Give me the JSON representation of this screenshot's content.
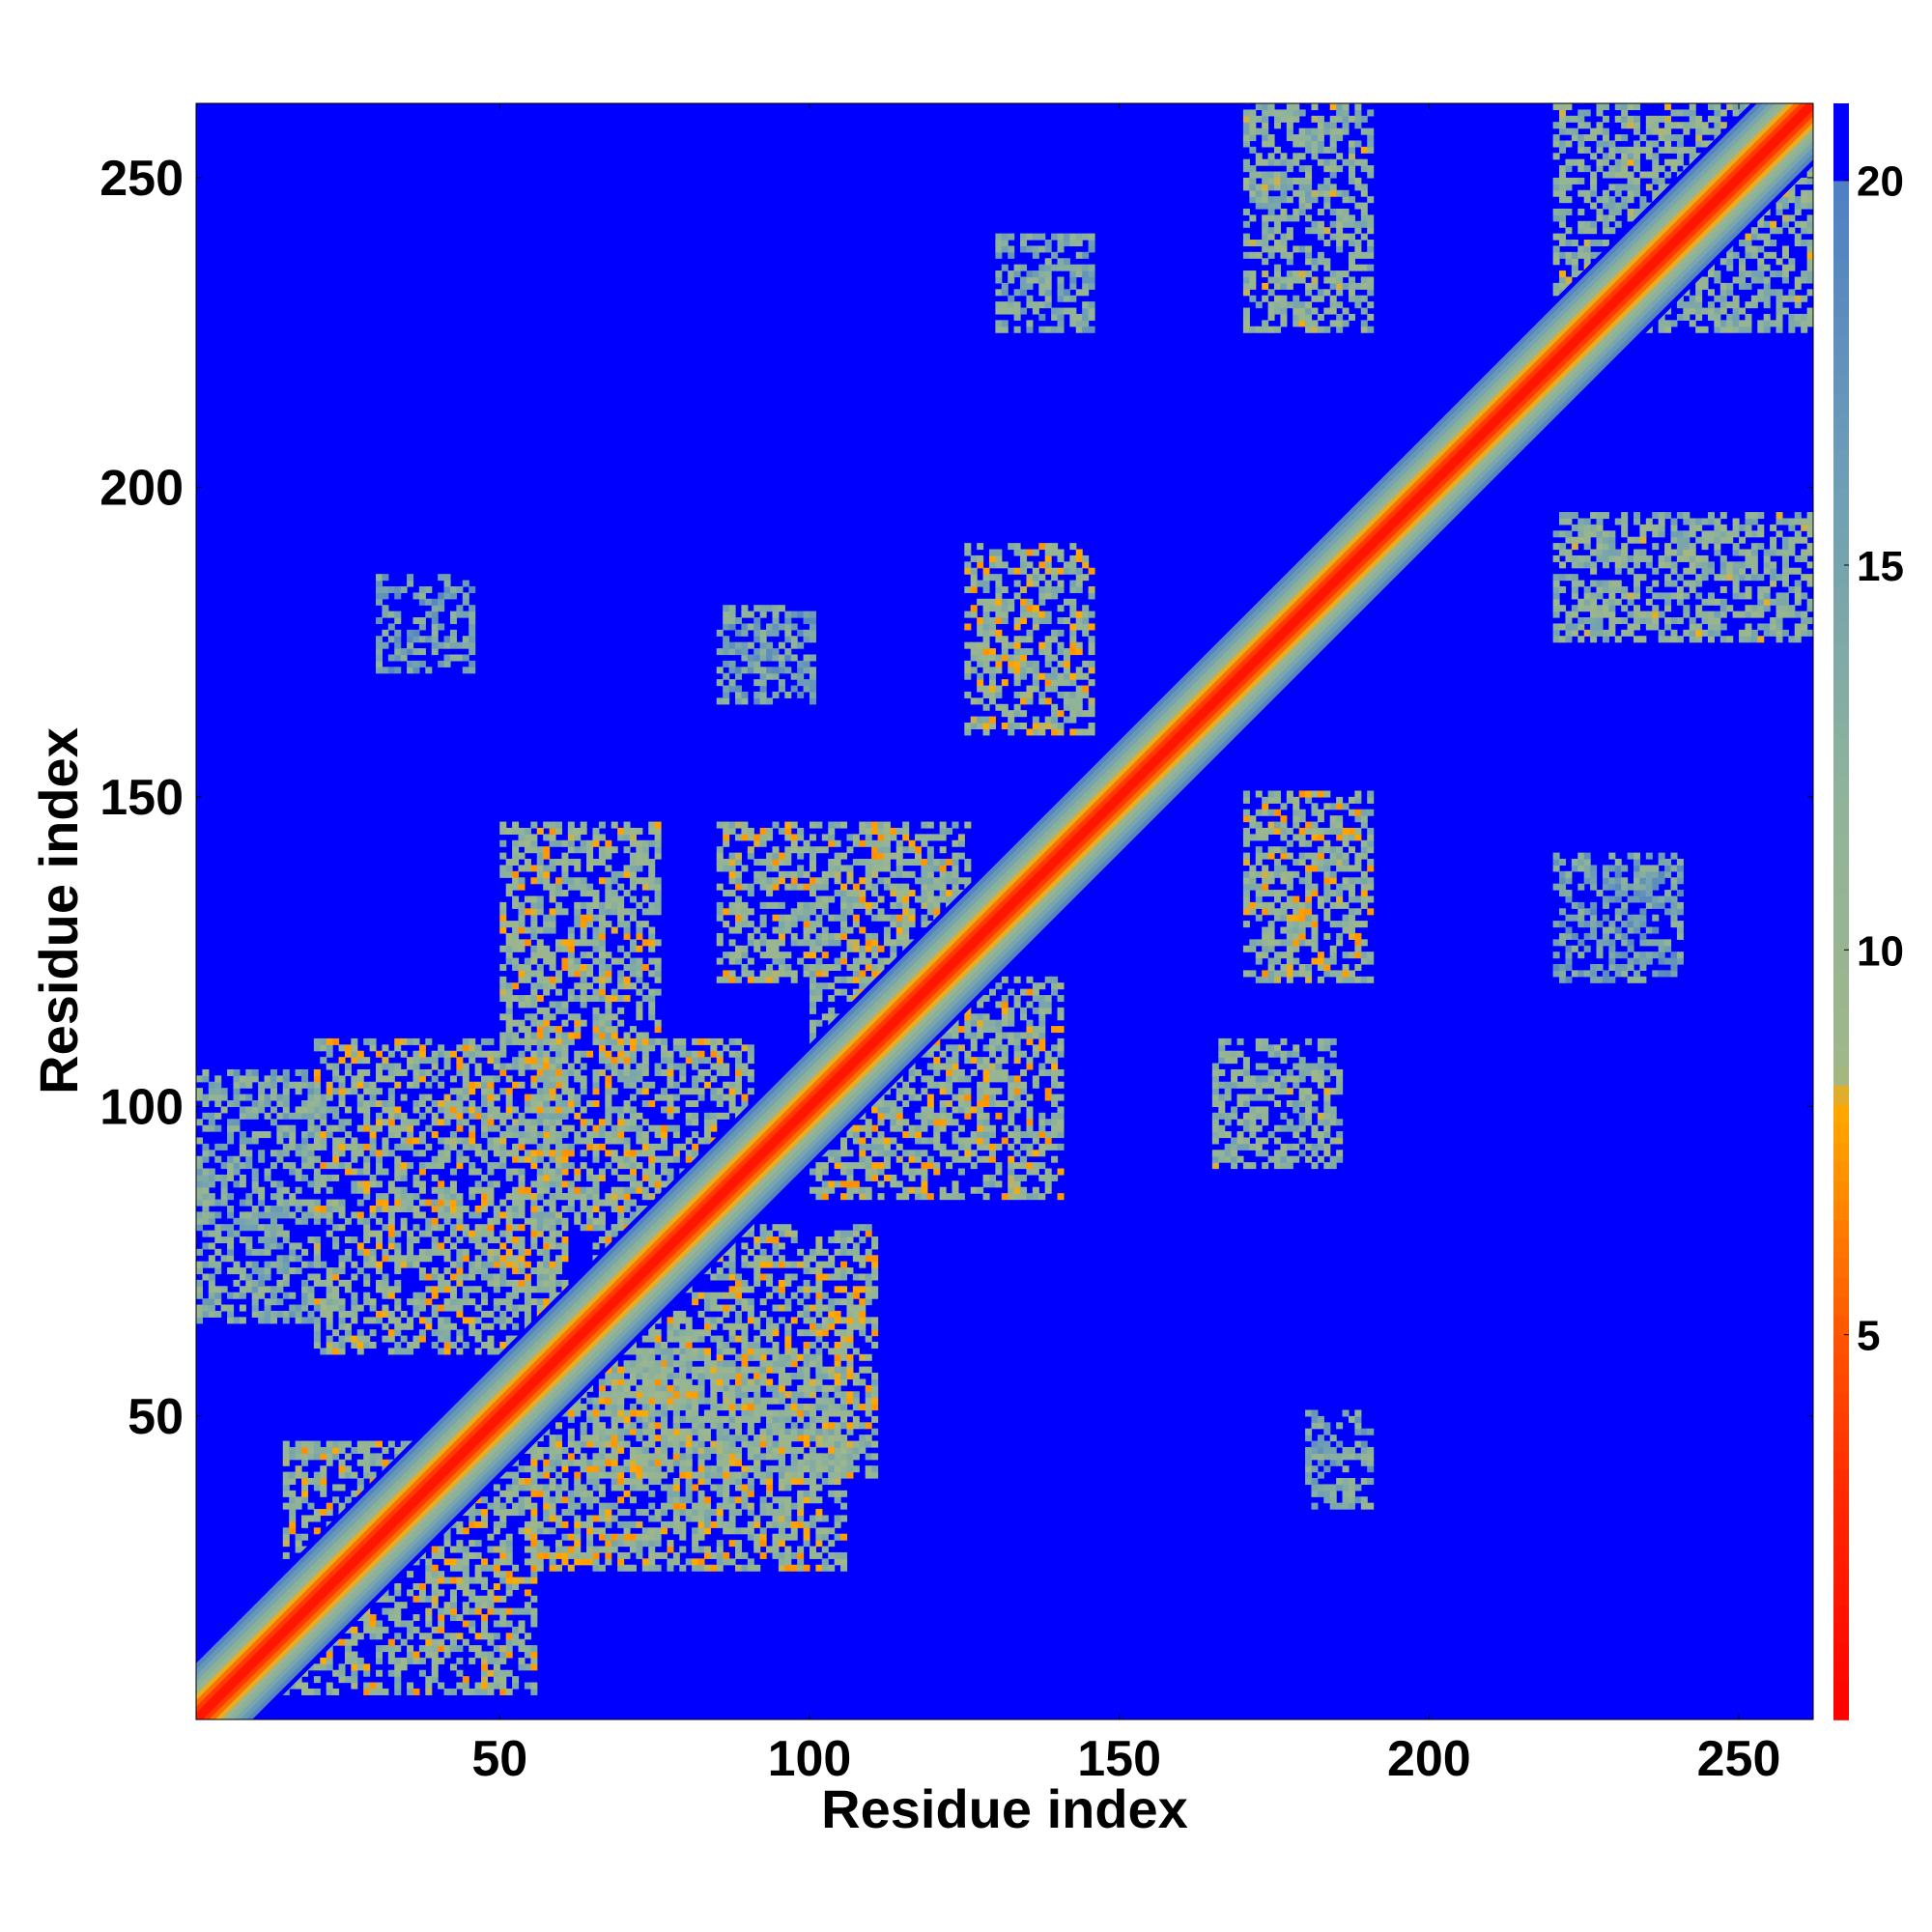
{
  "chart_data": {
    "type": "heatmap",
    "title": "",
    "xlabel": "Residue index",
    "ylabel": "Residue index",
    "xlim": [
      1,
      262
    ],
    "ylim": [
      1,
      262
    ],
    "x_ticks": [
      50,
      100,
      150,
      200,
      250
    ],
    "y_ticks": [
      50,
      100,
      150,
      200,
      250
    ],
    "colorbar": {
      "range": [
        0,
        21
      ],
      "ticks": [
        5,
        10,
        15,
        20
      ],
      "stops": [
        {
          "value": 0,
          "color": "#ff0000"
        },
        {
          "value": 3,
          "color": "#ff2a00"
        },
        {
          "value": 5,
          "color": "#ff5500"
        },
        {
          "value": 6.5,
          "color": "#ff8000"
        },
        {
          "value": 8,
          "color": "#ffaa00"
        },
        {
          "value": 8.4,
          "color": "#9fb78a"
        },
        {
          "value": 12,
          "color": "#8fb39a"
        },
        {
          "value": 16,
          "color": "#6f9fb4"
        },
        {
          "value": 20,
          "color": "#4f7fc4"
        },
        {
          "value": 20.01,
          "color": "#0000ff"
        },
        {
          "value": 21,
          "color": "#0000ff"
        }
      ]
    },
    "background_value": 21,
    "structure": {
      "diagonal_band": {
        "half_width": 9,
        "core_value": 1.5
      },
      "contact_regions": [
        {
          "x": [
            15,
            55
          ],
          "y": [
            5,
            45
          ],
          "value": 11
        },
        {
          "x": [
            55,
            105
          ],
          "y": [
            25,
            60
          ],
          "value": 11
        },
        {
          "x": [
            65,
            110
          ],
          "y": [
            40,
            80
          ],
          "value": 11
        },
        {
          "x": [
            20,
            60
          ],
          "y": [
            60,
            110
          ],
          "value": 11
        },
        {
          "x": [
            55,
            90
          ],
          "y": [
            80,
            110
          ],
          "value": 11
        },
        {
          "x": [
            100,
            140
          ],
          "y": [
            85,
            120
          ],
          "value": 11
        },
        {
          "x": [
            85,
            125
          ],
          "y": [
            120,
            145
          ],
          "value": 11
        },
        {
          "x": [
            50,
            75
          ],
          "y": [
            110,
            145
          ],
          "value": 11
        },
        {
          "x": [
            125,
            145
          ],
          "y": [
            160,
            190
          ],
          "value": 11
        },
        {
          "x": [
            170,
            190
          ],
          "y": [
            120,
            150
          ],
          "value": 11
        },
        {
          "x": [
            165,
            185
          ],
          "y": [
            90,
            110
          ],
          "value": 12
        },
        {
          "x": [
            170,
            190
          ],
          "y": [
            225,
            262
          ],
          "value": 12
        },
        {
          "x": [
            220,
            262
          ],
          "y": [
            225,
            262
          ],
          "value": 12
        },
        {
          "x": [
            220,
            262
          ],
          "y": [
            175,
            195
          ],
          "value": 12
        },
        {
          "x": [
            0,
            20
          ],
          "y": [
            65,
            105
          ],
          "value": 13
        },
        {
          "x": [
            130,
            145
          ],
          "y": [
            225,
            240
          ],
          "value": 14
        },
        {
          "x": [
            180,
            190
          ],
          "y": [
            35,
            50
          ],
          "value": 14
        },
        {
          "x": [
            30,
            45
          ],
          "y": [
            170,
            185
          ],
          "value": 15
        },
        {
          "x": [
            85,
            100
          ],
          "y": [
            165,
            180
          ],
          "value": 15
        },
        {
          "x": [
            220,
            240
          ],
          "y": [
            120,
            140
          ],
          "value": 15
        }
      ]
    }
  }
}
